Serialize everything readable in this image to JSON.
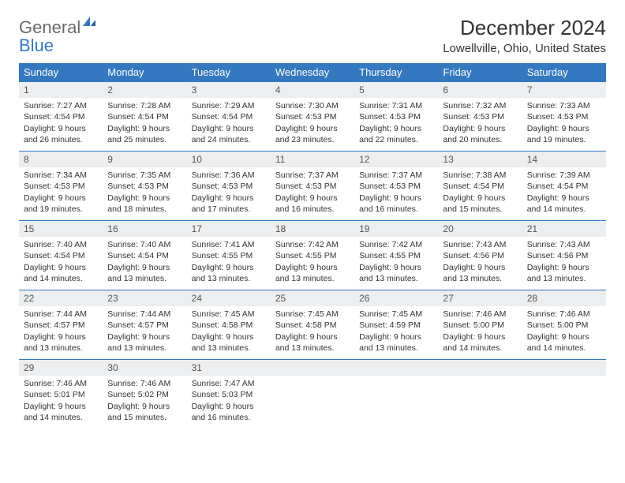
{
  "logo": {
    "word1": "General",
    "word2": "Blue"
  },
  "title": "December 2024",
  "location": "Lowellville, Ohio, United States",
  "colors": {
    "header_bg": "#3478c0",
    "header_text": "#ffffff",
    "daynum_bg": "#eceef0",
    "day_border": "#3478c0",
    "page_bg": "#ffffff",
    "text": "#333333",
    "logo_gray": "#6a6a6a",
    "logo_blue": "#3478c0"
  },
  "weekday_headers": [
    "Sunday",
    "Monday",
    "Tuesday",
    "Wednesday",
    "Thursday",
    "Friday",
    "Saturday"
  ],
  "weeks": [
    [
      {
        "n": "1",
        "sr": "7:27 AM",
        "ss": "4:54 PM",
        "dl": "9 hours and 26 minutes."
      },
      {
        "n": "2",
        "sr": "7:28 AM",
        "ss": "4:54 PM",
        "dl": "9 hours and 25 minutes."
      },
      {
        "n": "3",
        "sr": "7:29 AM",
        "ss": "4:54 PM",
        "dl": "9 hours and 24 minutes."
      },
      {
        "n": "4",
        "sr": "7:30 AM",
        "ss": "4:53 PM",
        "dl": "9 hours and 23 minutes."
      },
      {
        "n": "5",
        "sr": "7:31 AM",
        "ss": "4:53 PM",
        "dl": "9 hours and 22 minutes."
      },
      {
        "n": "6",
        "sr": "7:32 AM",
        "ss": "4:53 PM",
        "dl": "9 hours and 20 minutes."
      },
      {
        "n": "7",
        "sr": "7:33 AM",
        "ss": "4:53 PM",
        "dl": "9 hours and 19 minutes."
      }
    ],
    [
      {
        "n": "8",
        "sr": "7:34 AM",
        "ss": "4:53 PM",
        "dl": "9 hours and 19 minutes."
      },
      {
        "n": "9",
        "sr": "7:35 AM",
        "ss": "4:53 PM",
        "dl": "9 hours and 18 minutes."
      },
      {
        "n": "10",
        "sr": "7:36 AM",
        "ss": "4:53 PM",
        "dl": "9 hours and 17 minutes."
      },
      {
        "n": "11",
        "sr": "7:37 AM",
        "ss": "4:53 PM",
        "dl": "9 hours and 16 minutes."
      },
      {
        "n": "12",
        "sr": "7:37 AM",
        "ss": "4:53 PM",
        "dl": "9 hours and 16 minutes."
      },
      {
        "n": "13",
        "sr": "7:38 AM",
        "ss": "4:54 PM",
        "dl": "9 hours and 15 minutes."
      },
      {
        "n": "14",
        "sr": "7:39 AM",
        "ss": "4:54 PM",
        "dl": "9 hours and 14 minutes."
      }
    ],
    [
      {
        "n": "15",
        "sr": "7:40 AM",
        "ss": "4:54 PM",
        "dl": "9 hours and 14 minutes."
      },
      {
        "n": "16",
        "sr": "7:40 AM",
        "ss": "4:54 PM",
        "dl": "9 hours and 13 minutes."
      },
      {
        "n": "17",
        "sr": "7:41 AM",
        "ss": "4:55 PM",
        "dl": "9 hours and 13 minutes."
      },
      {
        "n": "18",
        "sr": "7:42 AM",
        "ss": "4:55 PM",
        "dl": "9 hours and 13 minutes."
      },
      {
        "n": "19",
        "sr": "7:42 AM",
        "ss": "4:55 PM",
        "dl": "9 hours and 13 minutes."
      },
      {
        "n": "20",
        "sr": "7:43 AM",
        "ss": "4:56 PM",
        "dl": "9 hours and 13 minutes."
      },
      {
        "n": "21",
        "sr": "7:43 AM",
        "ss": "4:56 PM",
        "dl": "9 hours and 13 minutes."
      }
    ],
    [
      {
        "n": "22",
        "sr": "7:44 AM",
        "ss": "4:57 PM",
        "dl": "9 hours and 13 minutes."
      },
      {
        "n": "23",
        "sr": "7:44 AM",
        "ss": "4:57 PM",
        "dl": "9 hours and 13 minutes."
      },
      {
        "n": "24",
        "sr": "7:45 AM",
        "ss": "4:58 PM",
        "dl": "9 hours and 13 minutes."
      },
      {
        "n": "25",
        "sr": "7:45 AM",
        "ss": "4:58 PM",
        "dl": "9 hours and 13 minutes."
      },
      {
        "n": "26",
        "sr": "7:45 AM",
        "ss": "4:59 PM",
        "dl": "9 hours and 13 minutes."
      },
      {
        "n": "27",
        "sr": "7:46 AM",
        "ss": "5:00 PM",
        "dl": "9 hours and 14 minutes."
      },
      {
        "n": "28",
        "sr": "7:46 AM",
        "ss": "5:00 PM",
        "dl": "9 hours and 14 minutes."
      }
    ],
    [
      {
        "n": "29",
        "sr": "7:46 AM",
        "ss": "5:01 PM",
        "dl": "9 hours and 14 minutes."
      },
      {
        "n": "30",
        "sr": "7:46 AM",
        "ss": "5:02 PM",
        "dl": "9 hours and 15 minutes."
      },
      {
        "n": "31",
        "sr": "7:47 AM",
        "ss": "5:03 PM",
        "dl": "9 hours and 16 minutes."
      },
      null,
      null,
      null,
      null
    ]
  ],
  "labels": {
    "sunrise": "Sunrise:",
    "sunset": "Sunset:",
    "daylight": "Daylight:"
  }
}
